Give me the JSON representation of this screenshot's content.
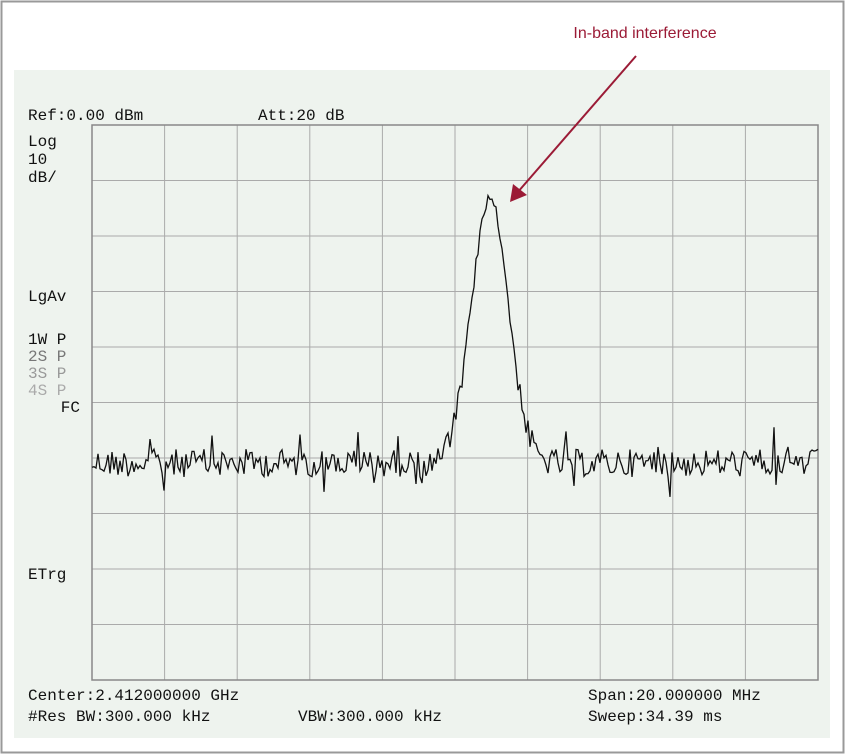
{
  "annotation": "In-band interference",
  "header": {
    "ref": "Ref:0.00 dBm",
    "att": "Att:20 dB"
  },
  "left_labels": [
    "Log",
    "10",
    "dB/",
    "LgAv",
    "1W P",
    "2S P",
    "3S P",
    "4S P",
    "FC",
    "ETrg"
  ],
  "footer": {
    "center": "Center:2.412000000 GHz",
    "span": "Span:20.000000 MHz",
    "res_bw": "#Res BW:300.000 kHz",
    "vbw": "VBW:300.000 kHz",
    "sweep": "Sweep:34.39 ms"
  }
}
